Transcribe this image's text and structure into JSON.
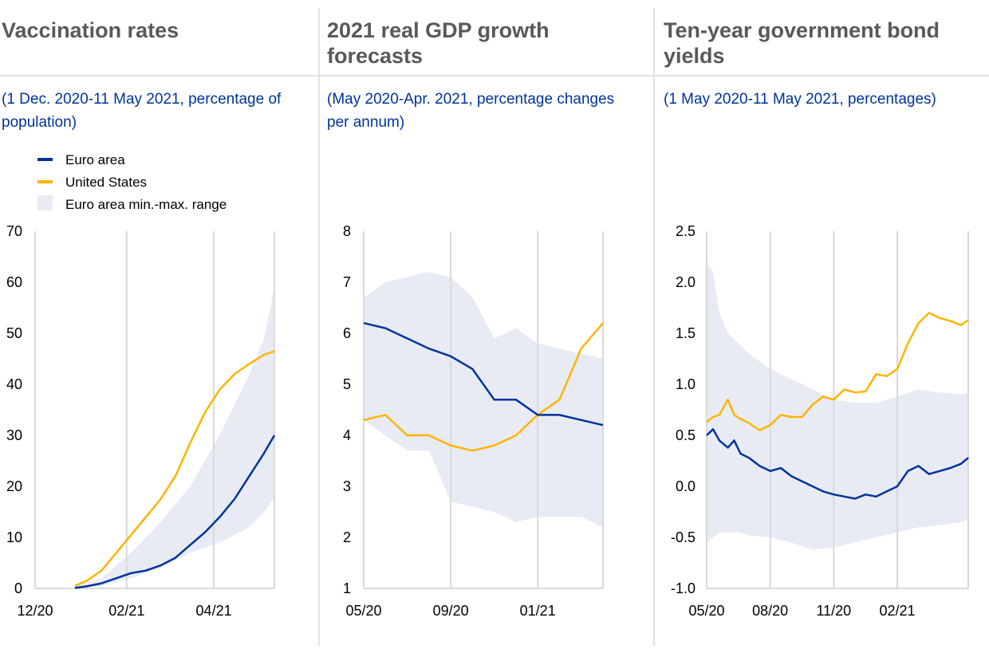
{
  "colors": {
    "euro": "#003399",
    "us": "#ffb400",
    "range": "#e8ebf4",
    "title": "#595959",
    "subtitle": "#003399"
  },
  "panels": [
    {
      "title_line1": "Vaccination rates",
      "title_line2": "",
      "subtitle_line1": "(1 Dec. 2020-11 May 2021, percentage of",
      "subtitle_line2": "population)"
    },
    {
      "title_line1": "2021 real GDP growth",
      "title_line2": "forecasts",
      "subtitle_line1": "(May 2020-Apr. 2021, percentage changes",
      "subtitle_line2": "per annum)"
    },
    {
      "title_line1": "Ten-year government bond",
      "title_line2": "yields",
      "subtitle_line1": "(1 May 2020-11 May 2021, percentages)",
      "subtitle_line2": ""
    }
  ],
  "legend": {
    "euro": "Euro area",
    "us": "United States",
    "range": "Euro area min.-max. range"
  },
  "chart_data": [
    {
      "type": "line",
      "title": "Vaccination rates",
      "subtitle": "(1 Dec. 2020-11 May 2021, percentage of population)",
      "x_unit": "days since 1 Dec 2020",
      "xlim": [
        0,
        162
      ],
      "ylim": [
        0,
        70
      ],
      "yticks": [
        0,
        10,
        20,
        30,
        40,
        50,
        60,
        70
      ],
      "yticklabels": [
        "0",
        "10",
        "20",
        "30",
        "40",
        "50",
        "60",
        "70"
      ],
      "xticks": [
        0,
        62,
        121
      ],
      "xticklabels": [
        "12/20",
        "02/21",
        "04/21"
      ],
      "series": [
        {
          "name": "Euro area",
          "x": [
            27,
            35,
            45,
            55,
            65,
            75,
            85,
            95,
            105,
            115,
            125,
            135,
            145,
            155,
            162
          ],
          "values": [
            0.1,
            0.4,
            1.0,
            2.0,
            3.0,
            3.5,
            4.5,
            6.0,
            8.5,
            11.0,
            14.0,
            17.5,
            22.0,
            26.5,
            30.0
          ]
        },
        {
          "name": "United States",
          "x": [
            27,
            35,
            45,
            55,
            65,
            75,
            85,
            95,
            105,
            115,
            125,
            135,
            145,
            155,
            162
          ],
          "values": [
            0.5,
            1.5,
            3.5,
            7.0,
            10.5,
            14.0,
            17.5,
            22.0,
            28.5,
            34.5,
            39.0,
            42.0,
            44.0,
            45.8,
            46.5
          ]
        }
      ],
      "range": {
        "name": "Euro area min.-max. range",
        "x": [
          27,
          45,
          65,
          85,
          105,
          125,
          145,
          155,
          160,
          162
        ],
        "low": [
          0,
          0.5,
          2.0,
          4.0,
          7.0,
          9.0,
          12.0,
          15.0,
          17.0,
          17.5
        ],
        "high": [
          0.5,
          2.0,
          7.0,
          13.0,
          20.0,
          30.0,
          42.0,
          49.0,
          56.0,
          60.0
        ]
      }
    },
    {
      "type": "line",
      "title": "2021 real GDP growth forecasts",
      "subtitle": "(May 2020-Apr. 2021, percentage changes per annum)",
      "x_unit": "months since May 2020",
      "xlim": [
        0,
        11
      ],
      "ylim": [
        1,
        8
      ],
      "yticks": [
        1,
        2,
        3,
        4,
        5,
        6,
        7,
        8
      ],
      "yticklabels": [
        "1",
        "2",
        "3",
        "4",
        "5",
        "6",
        "7",
        "8"
      ],
      "xticks": [
        0,
        4,
        8
      ],
      "xticklabels": [
        "05/20",
        "09/20",
        "01/21"
      ],
      "series": [
        {
          "name": "Euro area",
          "x": [
            0,
            1,
            2,
            3,
            4,
            5,
            6,
            7,
            8,
            9,
            10,
            11
          ],
          "values": [
            6.2,
            6.1,
            5.9,
            5.7,
            5.55,
            5.3,
            4.7,
            4.7,
            4.4,
            4.4,
            4.3,
            4.2
          ]
        },
        {
          "name": "United States",
          "x": [
            0,
            1,
            2,
            3,
            4,
            5,
            6,
            7,
            8,
            9,
            10,
            11
          ],
          "values": [
            4.3,
            4.4,
            4.0,
            4.0,
            3.8,
            3.7,
            3.8,
            4.0,
            4.4,
            4.7,
            5.7,
            6.2
          ]
        }
      ],
      "range": {
        "name": "Euro area min.-max. range",
        "x": [
          0,
          1,
          2,
          3,
          4,
          5,
          6,
          7,
          8,
          9,
          10,
          11
        ],
        "low": [
          4.3,
          4.0,
          3.7,
          3.7,
          2.7,
          2.6,
          2.5,
          2.3,
          2.4,
          2.4,
          2.4,
          2.2
        ],
        "high": [
          6.7,
          7.0,
          7.1,
          7.2,
          7.1,
          6.7,
          5.9,
          6.1,
          5.8,
          5.7,
          5.6,
          5.5
        ]
      }
    },
    {
      "type": "line",
      "title": "Ten-year government bond yields",
      "subtitle": "(1 May 2020-11 May 2021, percentages)",
      "x_unit": "months since May 2020",
      "xlim": [
        0,
        12.35
      ],
      "ylim": [
        -1.0,
        2.5
      ],
      "yticks": [
        -1.0,
        -0.5,
        0.0,
        0.5,
        1.0,
        1.5,
        2.0,
        2.5
      ],
      "yticklabels": [
        "-1.0",
        "-0.5",
        "0.0",
        "0.5",
        "1.0",
        "1.5",
        "2.0",
        "2.5"
      ],
      "xticks": [
        0,
        3,
        6,
        9
      ],
      "xticklabels": [
        "05/20",
        "08/20",
        "11/20",
        "02/21"
      ],
      "series": [
        {
          "name": "Euro area",
          "x": [
            0,
            0.3,
            0.6,
            1.0,
            1.3,
            1.6,
            2.0,
            2.5,
            3.0,
            3.5,
            4.0,
            4.5,
            5.0,
            5.5,
            6.0,
            6.5,
            7.0,
            7.5,
            8.0,
            8.5,
            9.0,
            9.5,
            10.0,
            10.5,
            11.0,
            11.5,
            12.0,
            12.35
          ],
          "values": [
            0.5,
            0.56,
            0.45,
            0.38,
            0.45,
            0.32,
            0.28,
            0.2,
            0.15,
            0.18,
            0.1,
            0.05,
            0.0,
            -0.05,
            -0.08,
            -0.1,
            -0.12,
            -0.08,
            -0.1,
            -0.05,
            0.0,
            0.15,
            0.2,
            0.12,
            0.15,
            0.18,
            0.22,
            0.28
          ]
        },
        {
          "name": "United States",
          "x": [
            0,
            0.3,
            0.6,
            1.0,
            1.3,
            1.6,
            2.0,
            2.5,
            3.0,
            3.5,
            4.0,
            4.5,
            5.0,
            5.5,
            6.0,
            6.5,
            7.0,
            7.5,
            8.0,
            8.5,
            9.0,
            9.5,
            10.0,
            10.5,
            11.0,
            11.5,
            12.0,
            12.35
          ],
          "values": [
            0.63,
            0.68,
            0.7,
            0.85,
            0.7,
            0.66,
            0.62,
            0.55,
            0.6,
            0.7,
            0.68,
            0.68,
            0.8,
            0.88,
            0.85,
            0.95,
            0.92,
            0.93,
            1.1,
            1.08,
            1.15,
            1.4,
            1.6,
            1.7,
            1.65,
            1.62,
            1.58,
            1.63
          ]
        }
      ],
      "range": {
        "name": "Euro area min.-max. range",
        "x": [
          0,
          0.3,
          0.6,
          1.0,
          1.5,
          2.0,
          3.0,
          4.0,
          5.0,
          6.0,
          7.0,
          8.0,
          9.0,
          10.0,
          11.0,
          12.0,
          12.35
        ],
        "low": [
          -0.55,
          -0.5,
          -0.45,
          -0.45,
          -0.45,
          -0.48,
          -0.5,
          -0.55,
          -0.62,
          -0.6,
          -0.55,
          -0.5,
          -0.45,
          -0.4,
          -0.38,
          -0.35,
          -0.32
        ],
        "high": [
          2.2,
          2.1,
          1.7,
          1.5,
          1.4,
          1.3,
          1.15,
          1.05,
          0.95,
          0.85,
          0.82,
          0.82,
          0.88,
          0.95,
          0.92,
          0.9,
          0.92
        ]
      }
    }
  ]
}
